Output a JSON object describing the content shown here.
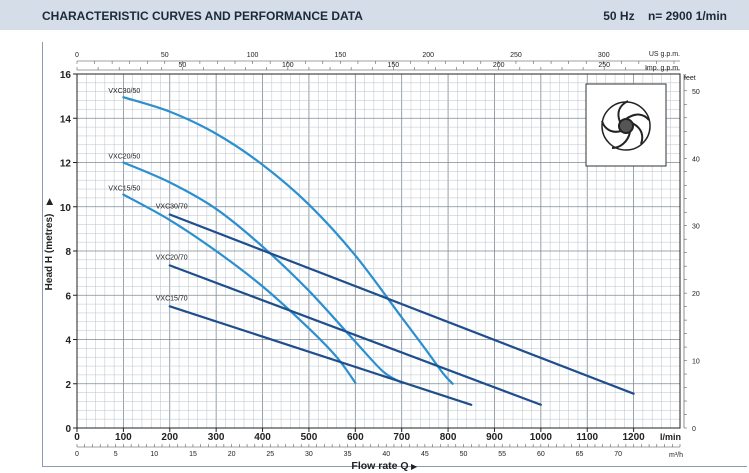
{
  "header": {
    "title": "CHARACTERISTIC CURVES AND PERFORMANCE DATA",
    "frequency": "50 Hz",
    "speed": "n= 2900  1/min"
  },
  "colors": {
    "header_bg": "#d5dde8",
    "curve_50": "#2b8fd0",
    "curve_70": "#1f4e8c",
    "grid_minor": "#b9c3cc",
    "grid_major": "#7d8a96"
  },
  "icons": [
    "impeller-icon"
  ],
  "chart_data": {
    "type": "line",
    "title": "",
    "xlabel": "Flow rate  Q",
    "ylabel": "Head H (metres)",
    "x_unit": "l/min",
    "xlim": [
      0,
      1300
    ],
    "ylim": [
      0,
      16
    ],
    "grid": true,
    "x_ticks": [
      0,
      100,
      200,
      300,
      400,
      500,
      600,
      700,
      800,
      900,
      1000,
      1100,
      1200
    ],
    "y_ticks": [
      0,
      2,
      4,
      6,
      8,
      10,
      12,
      14,
      16
    ],
    "secondary_axes": {
      "top_us": {
        "unit": "US g.p.m.",
        "ticks": [
          0,
          50,
          100,
          150,
          200,
          250,
          300
        ]
      },
      "top_imp": {
        "unit": "Imp. g.p.m.",
        "ticks": [
          50,
          100,
          150,
          200,
          250
        ]
      },
      "right_feet": {
        "unit": "feet",
        "ticks": [
          0,
          10,
          20,
          30,
          40,
          50
        ]
      },
      "bottom_m3h": {
        "unit": "m³/h",
        "ticks": [
          0,
          5,
          10,
          15,
          20,
          25,
          30,
          35,
          40,
          45,
          50,
          55,
          60,
          65,
          70
        ]
      }
    },
    "series": [
      {
        "name": "VXC30/50",
        "group": "50",
        "x": [
          100,
          200,
          300,
          400,
          500,
          600,
          700,
          750,
          790,
          810
        ],
        "y": [
          14.95,
          14.3,
          13.3,
          11.9,
          10.1,
          7.8,
          5.0,
          3.6,
          2.45,
          2.0
        ]
      },
      {
        "name": "VXC20/50",
        "group": "50",
        "x": [
          100,
          200,
          300,
          400,
          500,
          600,
          660,
          700
        ],
        "y": [
          12.0,
          11.1,
          9.9,
          8.2,
          6.2,
          3.9,
          2.55,
          2.05
        ]
      },
      {
        "name": "VXC15/50",
        "group": "50",
        "x": [
          100,
          200,
          300,
          400,
          500,
          560,
          600
        ],
        "y": [
          10.55,
          9.4,
          8.0,
          6.4,
          4.5,
          3.2,
          2.05
        ]
      },
      {
        "name": "VXC30/70",
        "group": "70",
        "x": [
          200,
          1200
        ],
        "y": [
          9.65,
          1.55
        ]
      },
      {
        "name": "VXC20/70",
        "group": "70",
        "x": [
          200,
          1000
        ],
        "y": [
          7.35,
          1.05
        ]
      },
      {
        "name": "VXC15/70",
        "group": "70",
        "x": [
          200,
          850
        ],
        "y": [
          5.5,
          1.05
        ]
      }
    ]
  }
}
